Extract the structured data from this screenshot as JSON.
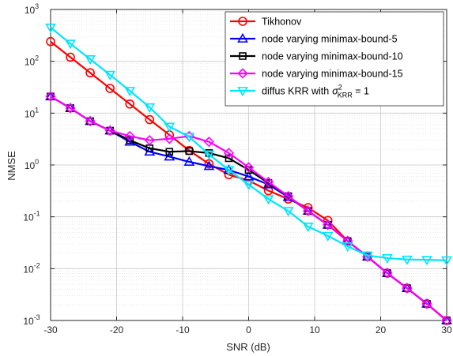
{
  "chart_data": {
    "type": "line",
    "xlabel": "SNR (dB)",
    "ylabel": "NMSE",
    "xlim": [
      -30,
      30
    ],
    "ylim": [
      0.001,
      1000
    ],
    "yscale": "log",
    "grid": true,
    "legend_position": "top-right",
    "x_ticks": [
      -30,
      -20,
      -10,
      0,
      10,
      20,
      30
    ],
    "x_tick_labels": [
      "-30",
      "-20",
      "-10",
      "0",
      "10",
      "20",
      "30"
    ],
    "y_ticks": [
      0.001,
      0.01,
      0.1,
      1,
      10,
      100,
      1000
    ],
    "y_tick_labels": [
      {
        "base": "10",
        "exp": "-3"
      },
      {
        "base": "10",
        "exp": "-2"
      },
      {
        "base": "10",
        "exp": "-1"
      },
      {
        "base": "10",
        "exp": "0"
      },
      {
        "base": "10",
        "exp": "1"
      },
      {
        "base": "10",
        "exp": "2"
      },
      {
        "base": "10",
        "exp": "3"
      }
    ],
    "x": [
      -30,
      -27,
      -24,
      -21,
      -18,
      -15,
      -12,
      -9,
      -6,
      -3,
      0,
      3,
      6,
      9,
      12,
      15,
      18,
      21,
      24,
      27,
      30
    ],
    "series": [
      {
        "name": "Tikhonov",
        "color": "#ff0000",
        "marker": "circle",
        "values": [
          240,
          120,
          60,
          30,
          15,
          7.5,
          3.8,
          1.9,
          1.05,
          0.65,
          0.5,
          0.32,
          0.22,
          0.15,
          0.085,
          0.034,
          0.017,
          0.0082,
          0.0042,
          0.0021,
          0.001
        ]
      },
      {
        "name": "node varying minimax-bound-5",
        "color": "#0000ff",
        "marker": "triangle-up",
        "values": [
          21,
          12.5,
          7,
          4.6,
          2.8,
          1.8,
          1.45,
          1.15,
          0.95,
          0.8,
          0.6,
          0.42,
          0.24,
          0.13,
          0.07,
          0.034,
          0.017,
          0.0082,
          0.0042,
          0.0021,
          0.001
        ]
      },
      {
        "name": "node varying minimax-bound-10",
        "color": "#000000",
        "marker": "square",
        "values": [
          21,
          12.5,
          7,
          4.6,
          3.0,
          2.1,
          1.8,
          1.85,
          1.7,
          1.35,
          0.8,
          0.45,
          0.25,
          0.13,
          0.07,
          0.034,
          0.017,
          0.0082,
          0.0042,
          0.0021,
          0.001
        ]
      },
      {
        "name": "node varying minimax-bound-15",
        "color": "#ff00ff",
        "marker": "diamond",
        "values": [
          21,
          12.5,
          7,
          4.6,
          3.6,
          3.0,
          3.2,
          3.6,
          2.8,
          1.7,
          0.9,
          0.47,
          0.25,
          0.13,
          0.07,
          0.034,
          0.017,
          0.0082,
          0.0042,
          0.0021,
          0.001
        ]
      },
      {
        "name": "diffus KRR with",
        "name_math": {
          "sigma": "σ",
          "sub": "KRR",
          "sup": "2",
          "rest": " = 1"
        },
        "color": "#00e5ff",
        "marker": "triangle-down",
        "values": [
          450,
          220,
          110,
          55,
          27,
          13,
          5.5,
          3.5,
          1.6,
          0.8,
          0.42,
          0.22,
          0.13,
          0.065,
          0.043,
          0.027,
          0.018,
          0.016,
          0.015,
          0.0148,
          0.0145
        ]
      }
    ]
  }
}
